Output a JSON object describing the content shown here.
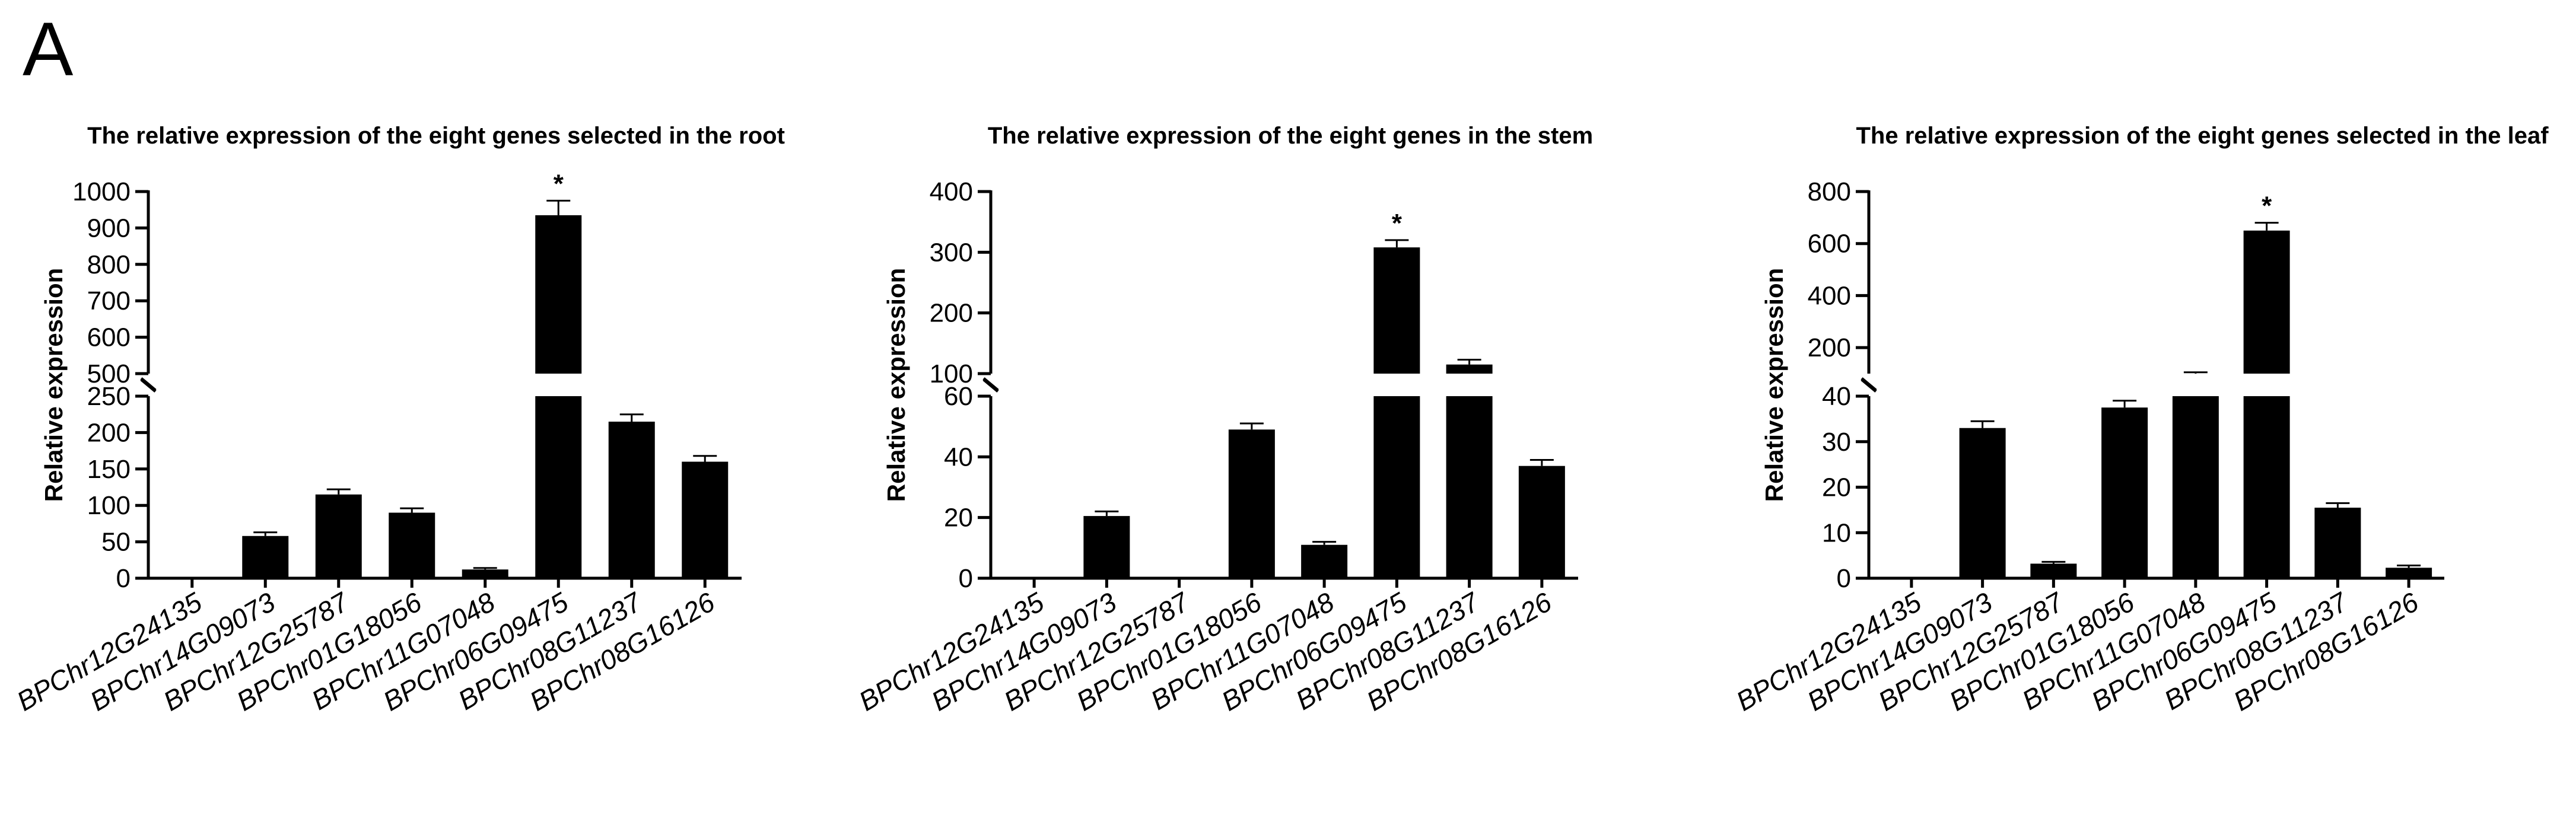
{
  "figure": {
    "panel_letter": "A"
  },
  "chart_data": [
    {
      "type": "bar",
      "title": "The relative expression of the eight genes selected in the root",
      "ylabel": "Relative expression",
      "xlabel": "",
      "categories": [
        "BPChr12G24135",
        "BPChr14G09073",
        "BPChr12G25787",
        "BPChr01G18056",
        "BPChr11G07048",
        "BPChr06G09475",
        "BPChr08G11237",
        "BPChr08G16126"
      ],
      "values": [
        0.5,
        58,
        115,
        90,
        12,
        935,
        215,
        160
      ],
      "errors": [
        0,
        5,
        7,
        6,
        2,
        40,
        10,
        8
      ],
      "significance": [
        "",
        "",
        "",
        "",
        "",
        "*",
        "",
        ""
      ],
      "y_axis_break": {
        "lower": {
          "range": [
            0,
            250
          ],
          "ticks": [
            0,
            50,
            100,
            150,
            200,
            250
          ]
        },
        "upper": {
          "range": [
            500,
            1000
          ],
          "ticks": [
            500,
            600,
            700,
            800,
            900,
            1000
          ]
        }
      },
      "grid": false,
      "legend": "none"
    },
    {
      "type": "bar",
      "title": "The relative expression of the eight genes in the stem",
      "ylabel": "Relative expression",
      "xlabel": "",
      "categories": [
        "BPChr12G24135",
        "BPChr14G09073",
        "BPChr12G25787",
        "BPChr01G18056",
        "BPChr11G07048",
        "BPChr06G09475",
        "BPChr08G11237",
        "BPChr08G16126"
      ],
      "values": [
        0.3,
        20.5,
        0.2,
        49,
        11,
        308,
        115,
        37
      ],
      "errors": [
        0,
        1.5,
        0,
        2,
        1,
        12,
        8,
        2
      ],
      "significance": [
        "",
        "",
        "",
        "",
        "",
        "*",
        "",
        ""
      ],
      "y_axis_break": {
        "lower": {
          "range": [
            0,
            60
          ],
          "ticks": [
            0,
            20,
            40,
            60
          ]
        },
        "upper": {
          "range": [
            100,
            400
          ],
          "ticks": [
            100,
            200,
            300,
            400
          ]
        }
      },
      "grid": false,
      "legend": "none"
    },
    {
      "type": "bar",
      "title": "The relative expression of the eight genes selected in the leaf",
      "ylabel": "Relative expression",
      "xlabel": "",
      "categories": [
        "BPChr12G24135",
        "BPChr14G09073",
        "BPChr12G25787",
        "BPChr01G18056",
        "BPChr11G07048",
        "BPChr06G09475",
        "BPChr08G11237",
        "BPChr08G16126"
      ],
      "values": [
        0.3,
        33,
        3.2,
        37.5,
        100,
        650,
        15.5,
        2.3
      ],
      "errors": [
        0,
        1.5,
        0.4,
        1.5,
        5,
        30,
        1,
        0.5
      ],
      "significance": [
        "",
        "",
        "",
        "",
        "",
        "*",
        "",
        ""
      ],
      "y_axis_break": {
        "lower": {
          "range": [
            0,
            40
          ],
          "ticks": [
            0,
            10,
            20,
            30,
            40
          ]
        },
        "upper": {
          "range": [
            100,
            800
          ],
          "ticks": [
            200,
            400,
            600,
            800
          ]
        }
      },
      "grid": false,
      "legend": "none"
    }
  ]
}
